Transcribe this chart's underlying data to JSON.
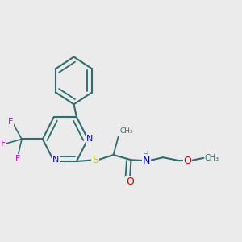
{
  "bg_color": "#ebebeb",
  "bond_color": "#2d6e6e",
  "bond_width": 1.5,
  "atom_colors": {
    "N": "#0000cc",
    "S": "#cccc00",
    "O": "#cc0000",
    "F": "#cc00cc",
    "H": "#5a8a8a"
  },
  "font_size": 8.5
}
